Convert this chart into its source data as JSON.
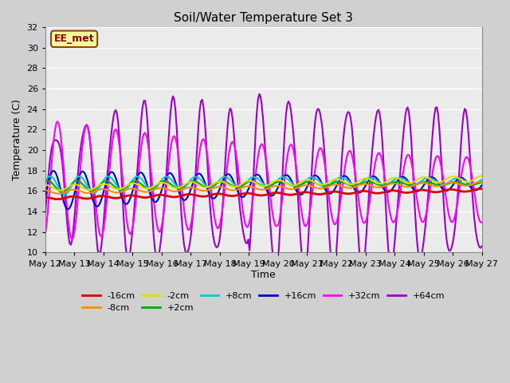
{
  "title": "Soil/Water Temperature Set 3",
  "xlabel": "Time",
  "ylabel": "Temperature (C)",
  "ylim": [
    10,
    32
  ],
  "yticks": [
    10,
    12,
    14,
    16,
    18,
    20,
    22,
    24,
    26,
    28,
    30,
    32
  ],
  "annotation": "EE_met",
  "annotation_color": "#8B0000",
  "annotation_bg": "#FFFF99",
  "series": {
    "-16cm": {
      "color": "#DD0000",
      "lw": 2.0
    },
    "-8cm": {
      "color": "#FF8C00",
      "lw": 1.5
    },
    "-2cm": {
      "color": "#DDDD00",
      "lw": 1.5
    },
    "+2cm": {
      "color": "#00AA00",
      "lw": 1.5
    },
    "+8cm": {
      "color": "#00CCCC",
      "lw": 1.5
    },
    "+16cm": {
      "color": "#0000CC",
      "lw": 1.5
    },
    "+32cm": {
      "color": "#FF00FF",
      "lw": 1.5
    },
    "+64cm": {
      "color": "#9900CC",
      "lw": 1.5
    }
  },
  "x_tick_days": [
    12,
    13,
    14,
    15,
    16,
    17,
    18,
    19,
    20,
    21,
    22,
    23,
    24,
    25,
    26,
    27
  ]
}
